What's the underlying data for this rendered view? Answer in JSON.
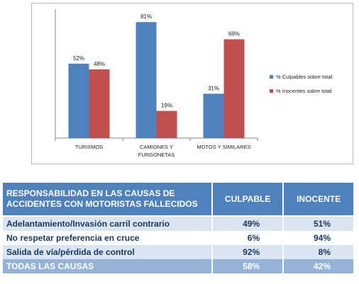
{
  "chart_data": {
    "type": "bar",
    "categories": [
      "TURISMOS",
      "CAMIONES Y FURGONETAS",
      "MOTOS Y SIMILARES"
    ],
    "category_lines": [
      [
        "TURISMOS"
      ],
      [
        "CAMIONES Y",
        "FURGONETAS"
      ],
      [
        "MOTOS Y SIMILARES"
      ]
    ],
    "series": [
      {
        "name": "% Culpables sobre total",
        "values": [
          52,
          81,
          31
        ],
        "labels": [
          "52%",
          "81%",
          "31%"
        ],
        "color": "#4f81bd"
      },
      {
        "name": "% Inocentes sobre total",
        "values": [
          48,
          19,
          69
        ],
        "labels": [
          "48%",
          "19%",
          "69%"
        ],
        "color": "#c0504d"
      }
    ],
    "ylim": [
      0,
      90
    ],
    "grid": false,
    "legend_position": "right"
  },
  "table": {
    "header": {
      "col0": "RESPONSABILIDAD EN LAS CAUSAS DE ACCIDENTES CON MOTORISTAS FALLECIDOS",
      "col1": "CULPABLE",
      "col2": "INOCENTE"
    },
    "rows": [
      {
        "cause": "Adelantamiento/Invasión carril contrario",
        "culpable": "49%",
        "inocente": "51%"
      },
      {
        "cause": "No respetar preferencia en cruce",
        "culpable": "6%",
        "inocente": "94%"
      },
      {
        "cause": "Salida de vía/pérdida de control",
        "culpable": "92%",
        "inocente": "8%"
      },
      {
        "cause": "TODAS LAS CAUSAS",
        "culpable": "58%",
        "inocente": "42%"
      }
    ]
  },
  "colors": {
    "header_bg": "#4f81bd",
    "stripe_bg": "#dbe5f1",
    "total_bg": "#95b3d7",
    "row_text": "#17375e"
  }
}
